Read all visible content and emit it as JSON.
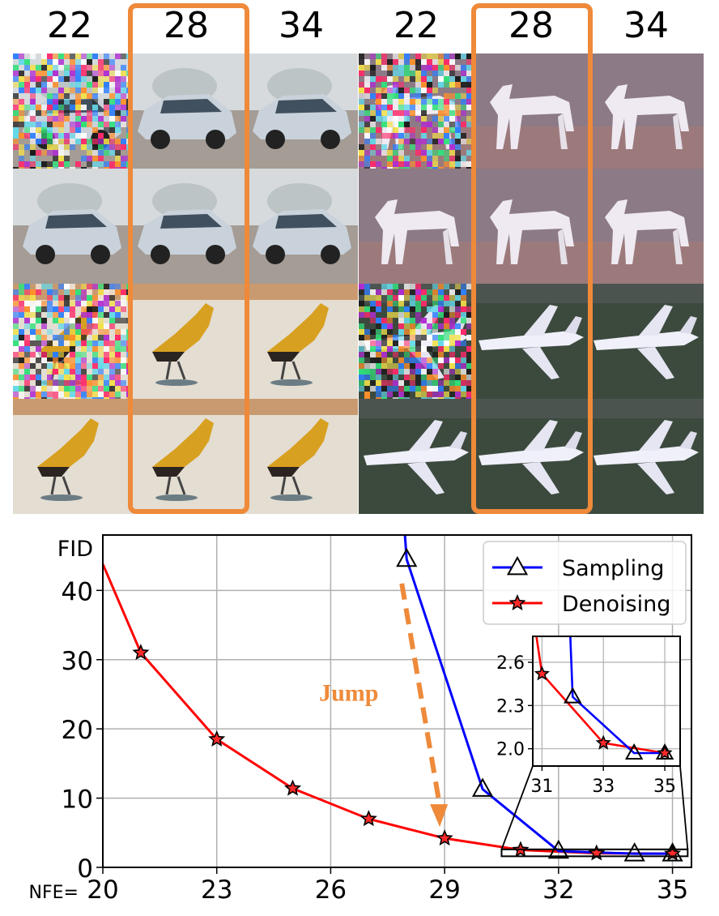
{
  "figure": {
    "grid": {
      "column_labels": [
        "22",
        "28",
        "34",
        "22",
        "28",
        "34"
      ],
      "highlight_color": "#ee8a3a",
      "highlighted_column_label": "28",
      "rows": [
        [
          "noisy-car",
          "clean-car",
          "clean-car",
          "noisy-horse",
          "clean-horse",
          "clean-horse"
        ],
        [
          "clean-car",
          "clean-car",
          "clean-car",
          "clean-horse",
          "clean-horse",
          "clean-horse"
        ],
        [
          "noisy-bird",
          "clean-bird",
          "clean-bird",
          "noisy-airplane",
          "clean-airplane",
          "clean-airplane"
        ],
        [
          "clean-bird",
          "clean-bird",
          "clean-bird",
          "clean-airplane",
          "clean-airplane",
          "clean-airplane"
        ]
      ]
    }
  },
  "chart_data": {
    "type": "line",
    "ylabel": "FID",
    "xlabel": "NFE=",
    "xlim": [
      20,
      35.5
    ],
    "ylim": [
      0,
      48
    ],
    "xticks": [
      20,
      23,
      26,
      29,
      32,
      35
    ],
    "yticks": [
      0,
      10,
      20,
      30,
      40
    ],
    "grid": true,
    "legend_position": "top-right",
    "series": [
      {
        "name": "Sampling",
        "color": "#0000ff",
        "marker": "triangle",
        "x": [
          28,
          30,
          32,
          34,
          35
        ],
        "y": [
          44.5,
          11.3,
          2.36,
          1.97,
          1.97
        ],
        "offscreen_start": [
          27.8,
          60
        ]
      },
      {
        "name": "Denoising",
        "color": "#ff0000",
        "marker": "star",
        "x": [
          21,
          23,
          25,
          27,
          29,
          31,
          33,
          35
        ],
        "y": [
          31.0,
          18.5,
          11.4,
          7.0,
          4.2,
          2.52,
          2.04,
          1.97
        ],
        "line_start": [
          20,
          43.8
        ]
      }
    ],
    "annotation": {
      "text": "Jump",
      "color": "#ee8a3a"
    },
    "inset": {
      "xlim": [
        30.7,
        35.5
      ],
      "ylim": [
        1.88,
        2.78
      ],
      "xticks": [
        31,
        33,
        35
      ],
      "yticks": [
        2.0,
        2.3,
        2.6
      ],
      "zoom_region": {
        "x": [
          30.5,
          35.4
        ],
        "y": [
          1.6,
          2.6
        ]
      }
    }
  }
}
